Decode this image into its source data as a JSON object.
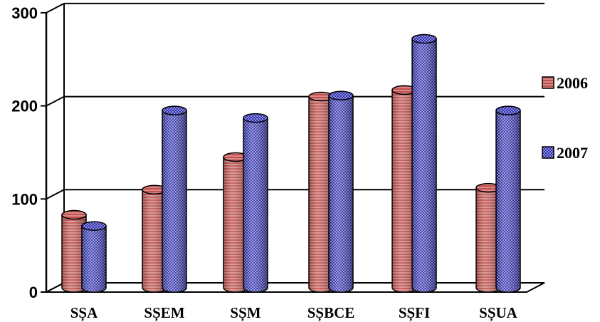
{
  "chart_data": {
    "type": "bar",
    "categories": [
      "SȘA",
      "SȘEM",
      "SȘM",
      "SȘBCE",
      "SȘFI",
      "SȘUA"
    ],
    "series": [
      {
        "name": "2006",
        "values": [
          83,
          110,
          145,
          210,
          217,
          112
        ],
        "color": "#c0504d"
      },
      {
        "name": "2007",
        "values": [
          71,
          195,
          187,
          211,
          272,
          195
        ],
        "color": "#3f3fb5"
      }
    ],
    "y_ticks": [
      "0",
      "100",
      "200",
      "300"
    ],
    "ylim": [
      0,
      300
    ],
    "grid": true,
    "legend_position": "right",
    "style": "3d-cylinder"
  }
}
